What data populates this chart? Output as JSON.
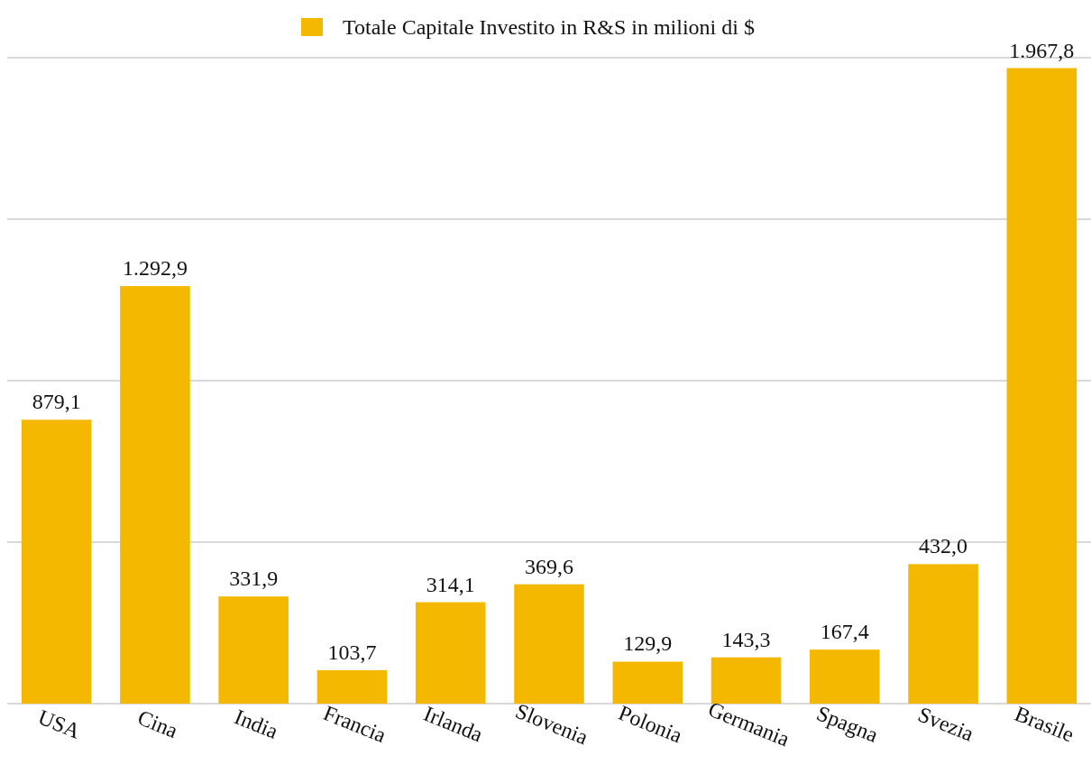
{
  "chart_data": {
    "type": "bar",
    "categories": [
      "USA",
      "Cina",
      "India",
      "Francia",
      "Irlanda",
      "Slovenia",
      "Polonia",
      "Germania",
      "Spagna",
      "Svezia",
      "Brasile"
    ],
    "series": [
      {
        "name": "Totale Capitale Investito in R&S in milioni di $",
        "color": "#f5b800",
        "values": [
          879.1,
          1292.9,
          331.9,
          103.7,
          314.1,
          369.6,
          129.9,
          143.3,
          167.4,
          432.0,
          1967.8
        ],
        "value_labels": [
          "879,1",
          "1.292,9",
          "331,9",
          "103,7",
          "314,1",
          "369,6",
          "129,9",
          "143,3",
          "167,4",
          "432,0",
          "1.967,8"
        ]
      }
    ],
    "ylim": [
      0,
      2000
    ],
    "yticks": [
      {
        "value": 0,
        "label": null
      },
      {
        "value": 500,
        "label": null
      },
      {
        "value": 1000,
        "label": null
      },
      {
        "value": 1500,
        "label": null
      },
      {
        "value": 2000,
        "label": null
      }
    ],
    "tick_labels": "x",
    "grid": "y",
    "legend": "top"
  }
}
